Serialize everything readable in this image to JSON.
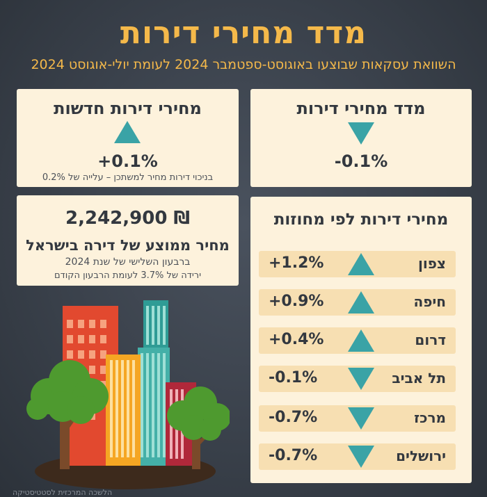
{
  "header": {
    "title": "מדד מחירי דירות",
    "subtitle": "השוואת עסקאות שבוצעו באוגוסט-ספטמבר 2024 לעומת יולי-אוגוסט 2024"
  },
  "index_card": {
    "title": "מדד מחירי דירות",
    "direction": "down",
    "change": "-0.1%"
  },
  "new_card": {
    "title": "מחירי דירות חדשות",
    "direction": "up",
    "change": "+0.1%",
    "note": "בניכוי דירות מחיר למשתכן – עלייה של 0.2%"
  },
  "avg_card": {
    "price": "2,242,900 ₪",
    "label": "מחיר ממוצע של דירה בישראל",
    "note1": "ברבעון השלישי של שנת 2024",
    "note2": "ירידה של 3.7% לעומת הרבעון הקודם"
  },
  "districts": {
    "title": "מחירי דירות לפי מחוזות",
    "items": [
      {
        "name": "צפון",
        "change": "+1.2%",
        "direction": "up"
      },
      {
        "name": "חיפה",
        "change": "+0.9%",
        "direction": "up"
      },
      {
        "name": "דרום",
        "change": "+0.4%",
        "direction": "up"
      },
      {
        "name": "תל אביב",
        "change": "-0.1%",
        "direction": "down"
      },
      {
        "name": "מרכז",
        "change": "-0.7%",
        "direction": "down"
      },
      {
        "name": "ירושלים",
        "change": "-0.7%",
        "direction": "down"
      }
    ]
  },
  "footer": {
    "credit": "הלשכה המרכזית לסטטיסטיקה"
  },
  "colors": {
    "accent": "#f5b94a",
    "card": "#fdf2dc",
    "row": "#f7dfb2",
    "arrow": "#3aa3a6",
    "background": "#3a414b"
  }
}
